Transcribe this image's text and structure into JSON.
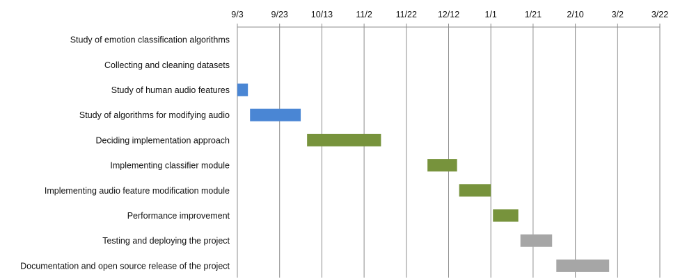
{
  "chart_data": {
    "type": "gantt",
    "title": "",
    "x_axis": {
      "position": "top",
      "tick_labels": [
        "9/3",
        "9/23",
        "10/13",
        "11/2",
        "11/22",
        "12/12",
        "1/1",
        "1/21",
        "2/10",
        "3/2",
        "3/22"
      ],
      "tick_interval_days": 20,
      "range": [
        "9/3",
        "3/22"
      ]
    },
    "grid": true,
    "legend": "none",
    "tasks": [
      {
        "name": "Study of emotion classification algorithms",
        "start": null,
        "end": null,
        "color": ""
      },
      {
        "name": "Collecting and cleaning datasets",
        "start": null,
        "end": null,
        "color": ""
      },
      {
        "name": "Study of human audio features",
        "start": "9/3",
        "end": "9/8",
        "color": "#4a86d4"
      },
      {
        "name": "Study of algorithms for modifying audio",
        "start": "9/9",
        "end": "10/3",
        "color": "#4a86d4"
      },
      {
        "name": "Deciding implementation approach",
        "start": "10/6",
        "end": "11/10",
        "color": "#77933c"
      },
      {
        "name": "Implementing classifier module",
        "start": "12/2",
        "end": "12/16",
        "color": "#77933c"
      },
      {
        "name": "Implementing audio feature modification module",
        "start": "12/17",
        "end": "1/1",
        "color": "#77933c"
      },
      {
        "name": "Performance improvement",
        "start": "1/2",
        "end": "1/14",
        "color": "#77933c"
      },
      {
        "name": "Testing and deploying the project",
        "start": "1/15",
        "end": "1/30",
        "color": "#a6a6a6"
      },
      {
        "name": "Documentation and open source release of the project",
        "start": "2/1",
        "end": "2/26",
        "color": "#a6a6a6"
      }
    ]
  }
}
